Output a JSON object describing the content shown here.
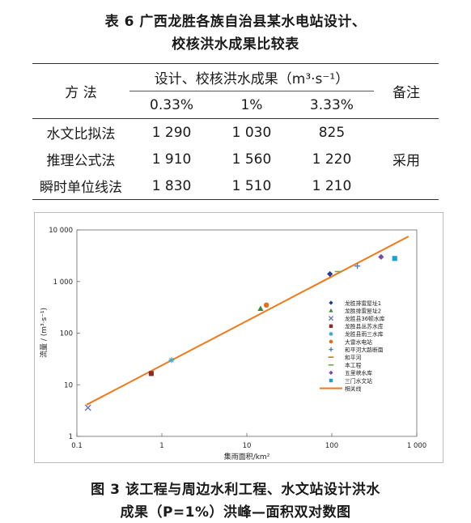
{
  "table": {
    "title_line1": "表 6    广西龙胜各族自治县某水电站设计、",
    "title_line2": "校核洪水成果比较表",
    "header_method": "方  法",
    "header_group": "设计、校核洪水成果（m³·s⁻¹）",
    "header_remark": "备注",
    "freq_cols": [
      "0.33%",
      "1%",
      "3.33%"
    ],
    "rows": [
      {
        "method": "水文比拟法",
        "values": [
          "1 290",
          "1 030",
          "825"
        ],
        "remark": ""
      },
      {
        "method": "推理公式法",
        "values": [
          "1 910",
          "1 560",
          "1 220"
        ],
        "remark": "采用"
      },
      {
        "method": "瞬时单位线法",
        "values": [
          "1 830",
          "1 510",
          "1 210"
        ],
        "remark": ""
      }
    ]
  },
  "figure": {
    "caption_line1": "图 3    该工程与周边水利工程、水文站设计洪水",
    "caption_line2": "成果（P=1%）洪峰—面积双对数图"
  },
  "chart_data": {
    "type": "scatter",
    "xlabel": "集雨面积/km²",
    "ylabel": "流量 / (m³·s⁻¹)",
    "xscale": "log",
    "yscale": "log",
    "xlim": [
      0.1,
      1000
    ],
    "ylim": [
      1,
      10000
    ],
    "x_ticks": [
      0.1,
      1,
      10,
      100,
      1000
    ],
    "x_tick_labels": [
      "0.1",
      "1",
      "10",
      "100",
      "1 000"
    ],
    "y_ticks": [
      1,
      10,
      100,
      1000,
      10000
    ],
    "y_tick_labels": [
      "1",
      "10",
      "100",
      "1 000",
      "10 000"
    ],
    "legend_position": "right",
    "grid": false,
    "series": [
      {
        "name": "龙胜排雷屋址1",
        "marker": "diamond",
        "color": "#1f3f8f",
        "x": 95,
        "y": 1400
      },
      {
        "name": "龙胜排雷屋址2",
        "marker": "triangle",
        "color": "#3a8a3a",
        "x": 14.5,
        "y": 300
      },
      {
        "name": "龙胜县36顿水库",
        "marker": "x",
        "color": "#6a6fb0",
        "x": 0.135,
        "y": 3.6
      },
      {
        "name": "龙胜县丛苏水库",
        "marker": "square",
        "color": "#8b2a2a",
        "x": 0.75,
        "y": 16.5
      },
      {
        "name": "龙胜县雨三水库",
        "marker": "star",
        "color": "#3fa7c8",
        "x": 1.3,
        "y": 30
      },
      {
        "name": "大雷水电站",
        "marker": "circle",
        "color": "#e07020",
        "x": 17,
        "y": 350
      },
      {
        "name": "和平河大路断面",
        "marker": "plus",
        "color": "#4a78c0",
        "x": 200,
        "y": 2000
      },
      {
        "name": "和平河",
        "marker": "dash",
        "color": "#e07020",
        "x": null,
        "y": null
      },
      {
        "name": "本工程",
        "marker": "dash",
        "color": "#6ab04c",
        "x": 120,
        "y": 1560
      },
      {
        "name": "五里峡水库",
        "marker": "diamond",
        "color": "#7a4aa8",
        "x": 380,
        "y": 3000
      },
      {
        "name": "三门水文站",
        "marker": "square",
        "color": "#1aa0d8",
        "x": 550,
        "y": 2800
      },
      {
        "name": "相关线",
        "marker": "line",
        "color": "#f07a1a",
        "line_x": [
          0.13,
          800
        ],
        "line_y": [
          4.1,
          7500
        ]
      }
    ]
  }
}
